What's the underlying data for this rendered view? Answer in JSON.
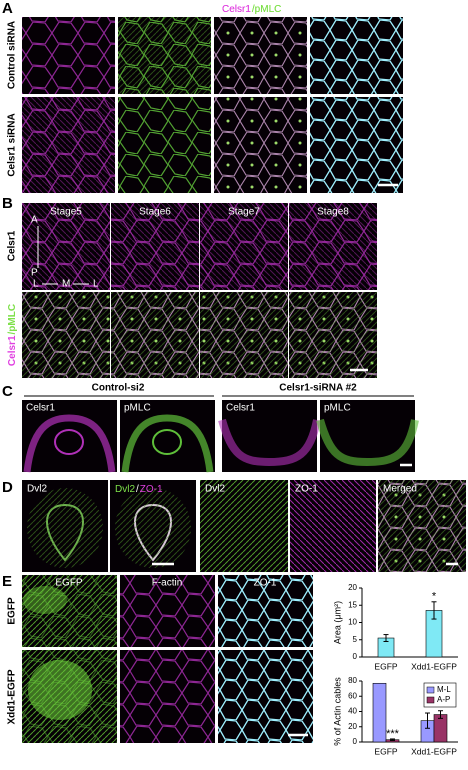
{
  "panels": {
    "A": {
      "label": "A",
      "columns": [
        "Celsr1",
        "pMLC",
        [
          "Celsr1",
          "/pMLC"
        ],
        "ZO-1"
      ],
      "rows": [
        "Control siRNA",
        "Celsr1 siRNA"
      ]
    },
    "B": {
      "label": "B",
      "columns": [
        "Stage5",
        "Stage6",
        "Stage7",
        "Stage8"
      ],
      "rows": [
        "Celsr1",
        [
          "Celsr1",
          "/pMLC"
        ]
      ],
      "axes": {
        "a": "A",
        "p": "P",
        "l1": "L",
        "m": "M",
        "l2": "L"
      }
    },
    "C": {
      "label": "C",
      "groups": [
        "Control-si2",
        "Celsr1-siRNA #2"
      ],
      "images": [
        "Celsr1",
        "pMLC",
        "Celsr1",
        "pMLC"
      ]
    },
    "D": {
      "label": "D",
      "images": [
        "Dvl2",
        [
          "Dvl2",
          "/",
          "ZO-1"
        ],
        "Dvl2",
        "ZO-1",
        "Merged"
      ]
    },
    "E": {
      "label": "E",
      "columns": [
        "EGFP",
        "F-actin",
        "ZO-1"
      ],
      "rows": [
        "EGFP",
        "Xdd1-EGFP"
      ]
    }
  },
  "chart_data": [
    {
      "type": "bar",
      "y_label": "Area (μm²)",
      "categories": [
        "EGFP",
        "Xdd1-EGFP"
      ],
      "values": [
        5.5,
        13.5
      ],
      "errors": [
        1,
        2.5
      ],
      "color": "#7fe9f5",
      "ylim": [
        0,
        20
      ],
      "yticks": [
        0,
        5,
        10,
        15,
        20
      ],
      "annotations": [
        "*"
      ]
    },
    {
      "type": "bar",
      "y_label": "% of Actin cables",
      "categories": [
        "EGFP",
        "Xdd1-EGFP"
      ],
      "series": [
        {
          "name": "M-L",
          "color": "#9999ff",
          "values": [
            77,
            28
          ],
          "errors": [
            null,
            10
          ]
        },
        {
          "name": "A-P",
          "color": "#993366",
          "values": [
            3,
            36
          ],
          "errors": [
            1,
            5
          ]
        }
      ],
      "ylim": [
        0,
        80
      ],
      "yticks": [
        0,
        20,
        40,
        60,
        80
      ],
      "legend": "upper right",
      "annotations": [
        "***"
      ]
    }
  ]
}
